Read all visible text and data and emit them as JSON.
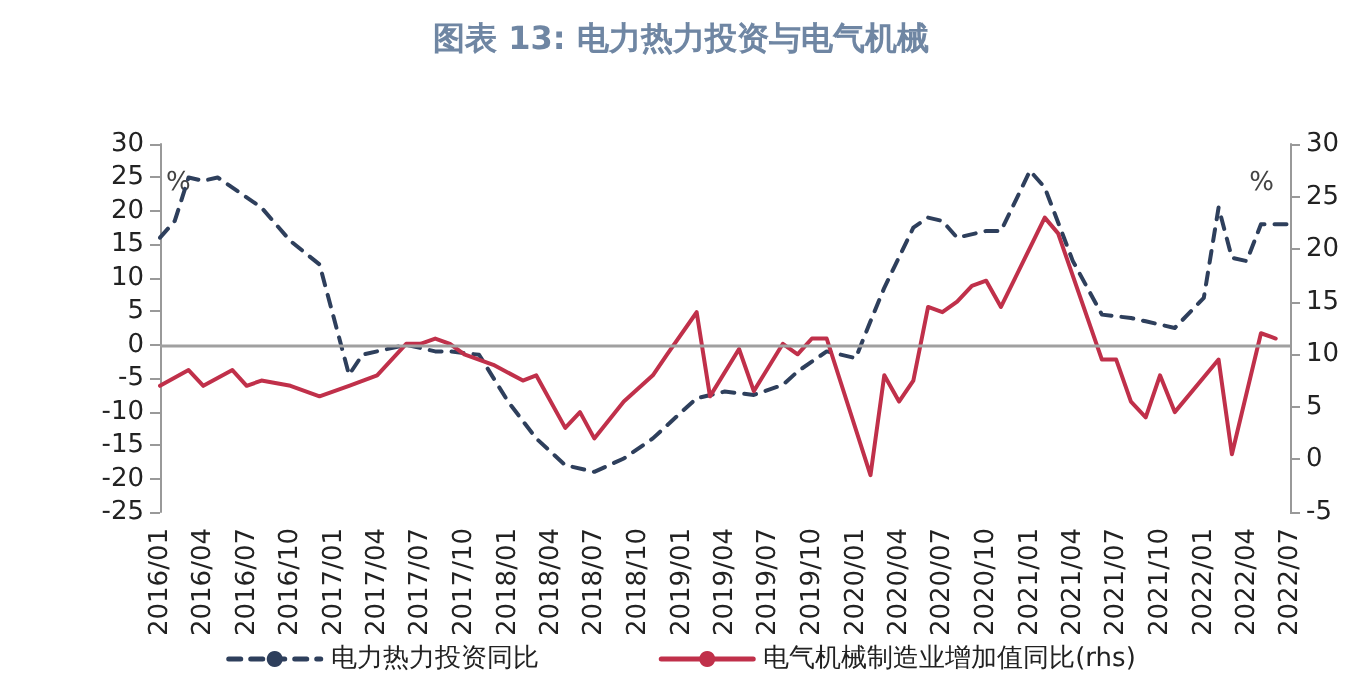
{
  "chart_data": {
    "type": "line",
    "title": "图表 13: 电力热力投资与电气机械",
    "ylabel": "%",
    "y2label": "%",
    "xlim": [
      "2016-01",
      "2022-07"
    ],
    "xticks": [
      {
        "value": "2016-01",
        "label": "2016/01"
      },
      {
        "value": "2016-04",
        "label": "2016/04"
      },
      {
        "value": "2016-07",
        "label": "2016/07"
      },
      {
        "value": "2016-10",
        "label": "2016/10"
      },
      {
        "value": "2017-01",
        "label": "2017/01"
      },
      {
        "value": "2017-04",
        "label": "2017/04"
      },
      {
        "value": "2017-07",
        "label": "2017/07"
      },
      {
        "value": "2017-10",
        "label": "2017/10"
      },
      {
        "value": "2018-01",
        "label": "2018/01"
      },
      {
        "value": "2018-04",
        "label": "2018/04"
      },
      {
        "value": "2018-07",
        "label": "2018/07"
      },
      {
        "value": "2018-10",
        "label": "2018/10"
      },
      {
        "value": "2019-01",
        "label": "2019/01"
      },
      {
        "value": "2019-04",
        "label": "2019/04"
      },
      {
        "value": "2019-07",
        "label": "2019/07"
      },
      {
        "value": "2019-10",
        "label": "2019/10"
      },
      {
        "value": "2020-01",
        "label": "2020/01"
      },
      {
        "value": "2020-04",
        "label": "2020/04"
      },
      {
        "value": "2020-07",
        "label": "2020/07"
      },
      {
        "value": "2020-10",
        "label": "2020/10"
      },
      {
        "value": "2021-01",
        "label": "2021/01"
      },
      {
        "value": "2021-04",
        "label": "2021/04"
      },
      {
        "value": "2021-07",
        "label": "2021/07"
      },
      {
        "value": "2021-10",
        "label": "2021/10"
      },
      {
        "value": "2022-01",
        "label": "2022/01"
      },
      {
        "value": "2022-04",
        "label": "2022/04"
      },
      {
        "value": "2022-07",
        "label": "2022/07"
      }
    ],
    "ylim": [
      -25,
      30
    ],
    "yticks": [
      -25,
      -20,
      -15,
      -10,
      -5,
      0,
      5,
      10,
      15,
      20,
      25,
      30
    ],
    "y2lim": [
      -5,
      30
    ],
    "y2ticks": [
      -5,
      0,
      5,
      10,
      15,
      20,
      25,
      30
    ],
    "ref_lines": [
      {
        "axis": "y",
        "value": 0,
        "color": "#a0a0a0"
      }
    ],
    "grid": false,
    "legend": "bottom",
    "marker": "none",
    "series": [
      {
        "name": "电力热力投资同比",
        "color": "#2e3f5c",
        "line_style": "dashed",
        "x": [
          "2016-01",
          "2016-02",
          "2016-03",
          "2016-04",
          "2016-05",
          "2016-08",
          "2016-10",
          "2016-12",
          "2017-02",
          "2017-03",
          "2017-06",
          "2017-08",
          "2017-09",
          "2017-11",
          "2018-01",
          "2018-03",
          "2018-05",
          "2018-07",
          "2018-09",
          "2018-11",
          "2019-01",
          "2019-02",
          "2019-04",
          "2019-06",
          "2019-08",
          "2019-09",
          "2019-11",
          "2020-01",
          "2020-02",
          "2020-03",
          "2020-05",
          "2020-06",
          "2020-07",
          "2020-08",
          "2020-10",
          "2020-11",
          "2021-01",
          "2021-02",
          "2021-04",
          "2021-06",
          "2021-08",
          "2021-09",
          "2021-11",
          "2022-01",
          "2022-02",
          "2022-03",
          "2022-04",
          "2022-05",
          "2022-07"
        ],
        "values": [
          16,
          18.5,
          25,
          24.5,
          25,
          20.5,
          15.5,
          12,
          -4.5,
          -1.5,
          0,
          -1,
          -1,
          -1.5,
          -8.5,
          -14,
          -18,
          -19,
          -17,
          -14,
          -10,
          -8,
          -7,
          -7.5,
          -6,
          -4,
          -1,
          -2,
          3.5,
          8.5,
          17.5,
          19,
          18.5,
          16,
          17,
          17,
          26,
          23.5,
          12.5,
          4.5,
          4,
          3.5,
          2.5,
          7,
          20.5,
          13,
          12.5,
          18,
          18
        ]
      },
      {
        "name": "电气机械制造业增加值同比(rhs)",
        "color": "#c0304a",
        "line_style": "solid",
        "axis": "y2",
        "x": [
          "2016-01",
          "2016-03",
          "2016-04",
          "2016-06",
          "2016-07",
          "2016-08",
          "2016-10",
          "2016-12",
          "2017-02",
          "2017-04",
          "2017-06",
          "2017-07",
          "2017-08",
          "2017-09",
          "2017-10",
          "2017-12",
          "2018-02",
          "2018-03",
          "2018-05",
          "2018-06",
          "2018-07",
          "2018-09",
          "2018-11",
          "2018-12",
          "2019-02",
          "2019-03",
          "2019-05",
          "2019-06",
          "2019-08",
          "2019-09",
          "2019-10",
          "2019-11",
          "2020-02",
          "2020-03",
          "2020-04",
          "2020-05",
          "2020-06",
          "2020-07",
          "2020-08",
          "2020-09",
          "2020-10",
          "2020-11",
          "2021-02",
          "2021-03",
          "2021-06",
          "2021-07",
          "2021-08",
          "2021-09",
          "2021-10",
          "2021-11",
          "2022-02",
          "2022-03",
          "2022-05",
          "2022-06"
        ],
        "values": [
          7,
          8.5,
          7,
          8.5,
          7,
          7.5,
          7,
          6,
          7,
          8,
          11,
          11,
          11.5,
          11,
          10,
          9,
          7.5,
          8,
          3,
          4.5,
          2,
          5.5,
          8,
          10,
          14,
          6,
          10.5,
          6.5,
          11,
          10,
          11.5,
          11.5,
          -1.5,
          8,
          5.5,
          7.5,
          14.5,
          14,
          15,
          16.5,
          17,
          14.5,
          23,
          21.5,
          9.5,
          9.5,
          5.5,
          4,
          8,
          4.5,
          9.5,
          0.5,
          12,
          11.5
        ]
      }
    ]
  }
}
